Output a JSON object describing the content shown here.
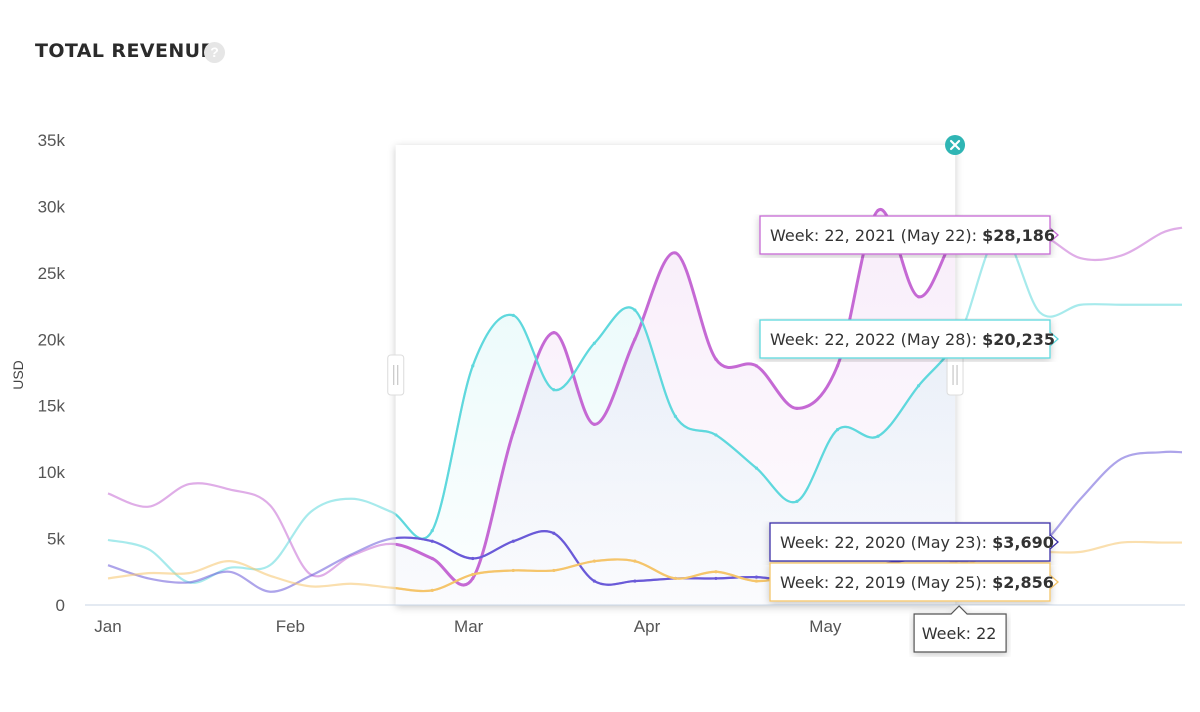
{
  "chart_data": {
    "type": "line",
    "title": "TOTAL REVENUE",
    "ylabel": "USD",
    "ylim": [
      0,
      35000
    ],
    "yticks": [
      "0",
      "5k",
      "10k",
      "15k",
      "20k",
      "25k",
      "30k",
      "35k"
    ],
    "yticks_values": [
      0,
      5000,
      10000,
      15000,
      20000,
      25000,
      30000,
      35000
    ],
    "xlim": [
      0,
      26.5
    ],
    "xticks": [
      {
        "label": "Jan",
        "x": 0
      },
      {
        "label": "Feb",
        "x": 4.5
      },
      {
        "label": "Mar",
        "x": 8.9
      },
      {
        "label": "Apr",
        "x": 13.3
      },
      {
        "label": "May",
        "x": 17.7
      }
    ],
    "selection_range": [
      7.1,
      20.9
    ],
    "series": [
      {
        "key": "s2021",
        "color": "#c569d4",
        "x": [
          0,
          1,
          2,
          3,
          4,
          5,
          6,
          7,
          8,
          9,
          10,
          11,
          12,
          13,
          14,
          15,
          16,
          17,
          18,
          19,
          20,
          21,
          22,
          23,
          24,
          25,
          26,
          26.5
        ],
        "y": [
          8400,
          7400,
          9100,
          8700,
          7500,
          2300,
          3700,
          4600,
          3500,
          2000,
          13000,
          20500,
          13600,
          20000,
          26500,
          18500,
          18000,
          14800,
          18000,
          29700,
          23200,
          28186,
          28000,
          27900,
          26100,
          26300,
          28000,
          28400
        ]
      },
      {
        "key": "s2022",
        "color": "#5fd8dd",
        "x": [
          0,
          1,
          2,
          3,
          4,
          5,
          6,
          7,
          8,
          9,
          10,
          11,
          12,
          13,
          14,
          15,
          16,
          17,
          18,
          19,
          20,
          21,
          22,
          23,
          24,
          25,
          26,
          26.5
        ],
        "y": [
          4900,
          4200,
          1700,
          2800,
          3000,
          7000,
          8000,
          7000,
          5600,
          18000,
          21800,
          16200,
          19700,
          22200,
          14200,
          12800,
          10300,
          7800,
          13200,
          12700,
          16500,
          20235,
          28000,
          22000,
          22600,
          22600,
          22600,
          22600
        ]
      },
      {
        "key": "s2020",
        "color": "#6a5ad8",
        "x": [
          0,
          1,
          2,
          3,
          4,
          5,
          6,
          7,
          8,
          9,
          10,
          11,
          12,
          13,
          14,
          15,
          16,
          17,
          18,
          19,
          20,
          21,
          22,
          23,
          24,
          25,
          26,
          26.5
        ],
        "y": [
          3000,
          2000,
          1700,
          2500,
          1000,
          2200,
          3800,
          5000,
          4800,
          3500,
          4800,
          5400,
          1800,
          1800,
          2000,
          2000,
          2100,
          1800,
          2300,
          3000,
          3500,
          3690,
          3600,
          4500,
          8000,
          11000,
          11500,
          11500
        ]
      },
      {
        "key": "s2019",
        "color": "#f5c56b",
        "x": [
          0,
          1,
          2,
          3,
          4,
          5,
          6,
          7,
          8,
          9,
          10,
          11,
          12,
          13,
          14,
          15,
          16,
          17,
          18,
          19,
          20,
          21,
          22,
          23,
          24,
          25,
          26,
          26.5
        ],
        "y": [
          2000,
          2400,
          2400,
          3300,
          2200,
          1400,
          1600,
          1300,
          1100,
          2300,
          2600,
          2600,
          3300,
          3300,
          2000,
          2500,
          1800,
          2300,
          2800,
          2000,
          2200,
          2856,
          4000,
          4000,
          4000,
          4700,
          4700,
          4700
        ]
      }
    ],
    "tooltips": [
      {
        "series": "s2021",
        "label": "Week: 22, 2021 (May 22): ",
        "value": "$28,186",
        "color": "#c569d4"
      },
      {
        "series": "s2022",
        "label": "Week: 22, 2022 (May 28): ",
        "value": "$20,235",
        "color": "#5fd8dd"
      },
      {
        "series": "s2020",
        "label": "Week: 22, 2020 (May 23): ",
        "value": "$3,690",
        "color": "#3a2fa8"
      },
      {
        "series": "s2019",
        "label": "Week: 22, 2019 (May 25): ",
        "value": "$2,856",
        "color": "#f5c56b"
      }
    ],
    "crosshair": {
      "x": 21,
      "label": "Week: 22"
    },
    "close_icon": "close-icon",
    "help_icon": "help-icon"
  }
}
